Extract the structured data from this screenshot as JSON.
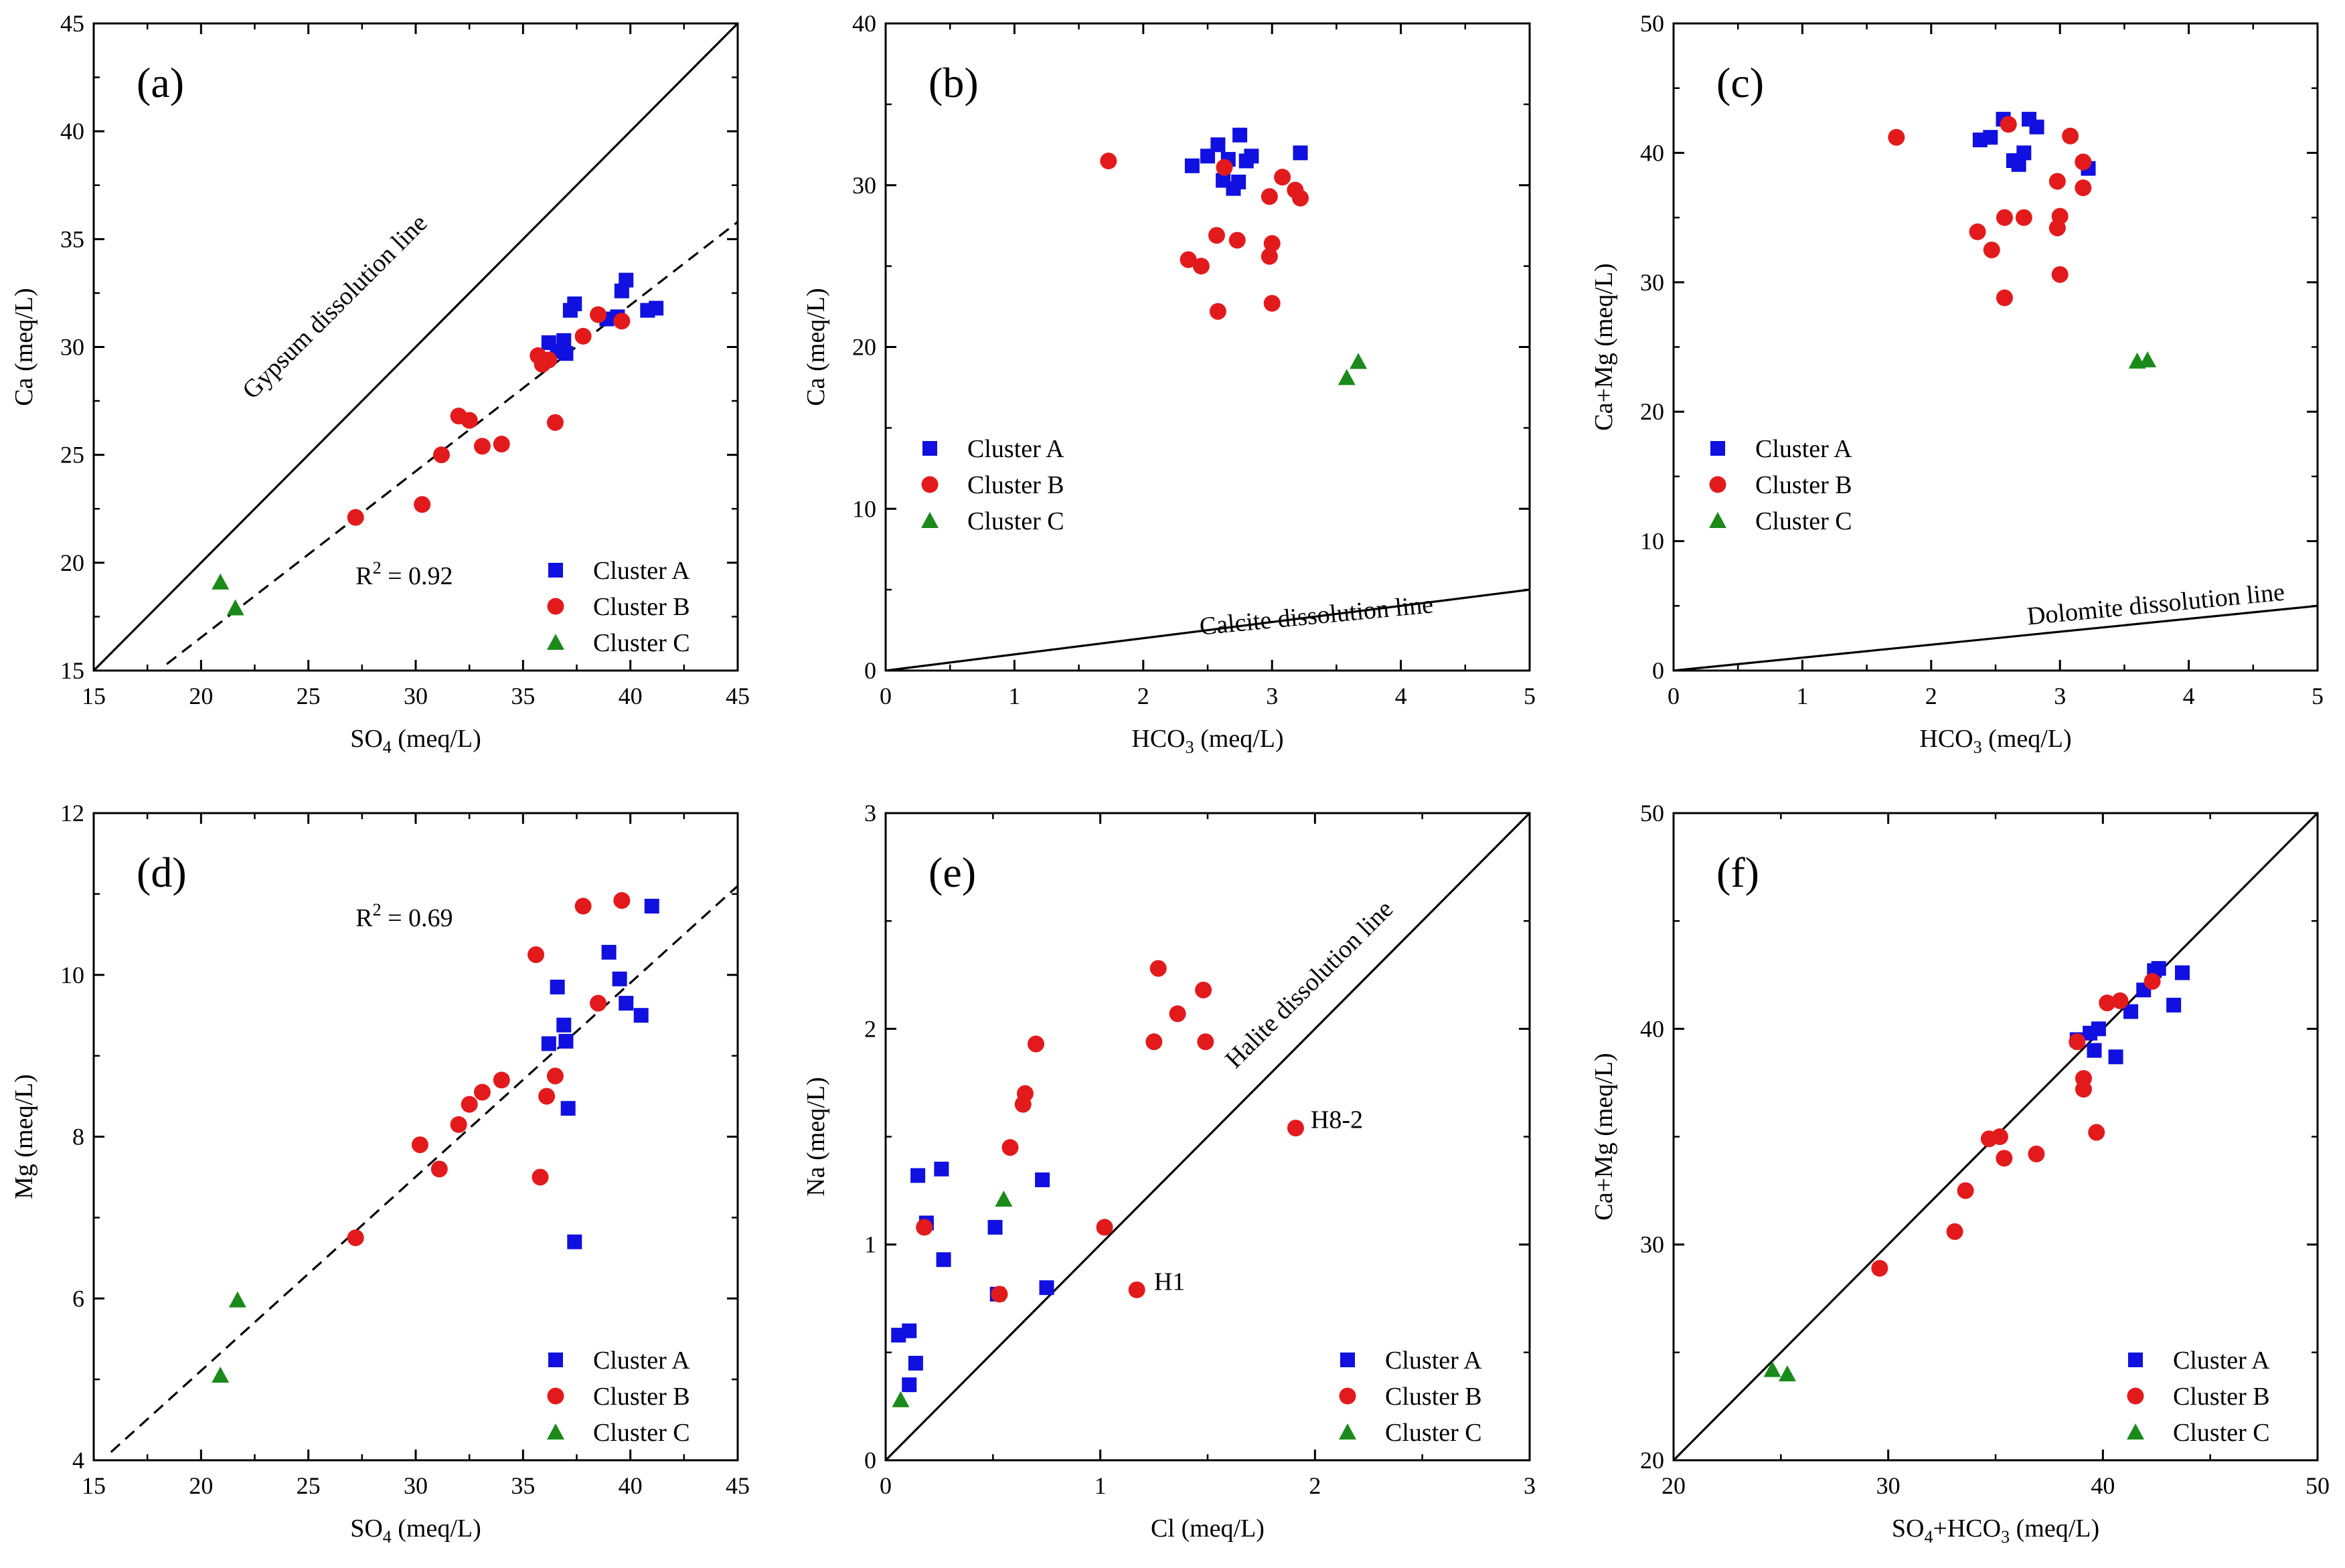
{
  "figure": {
    "description_markers": {
      "A": "square",
      "B": "circle",
      "C": "triangle"
    }
  },
  "colors": {
    "cluster_a": "#1010e0",
    "cluster_b": "#e31a1c",
    "cluster_c": "#1a8a1a",
    "axis": "#000000"
  },
  "chart_data": [
    {
      "panel": "(a)",
      "type": "scatter",
      "xlabel": "SO",
      "xlabel_sub": "4",
      "xlabel_tail": " (meq/L)",
      "ylabel": "Ca (meq/L)",
      "xlim": [
        15,
        45
      ],
      "ylim": [
        15,
        45
      ],
      "xticks": [
        15,
        20,
        25,
        30,
        35,
        40,
        45
      ],
      "yticks": [
        15,
        20,
        25,
        30,
        35,
        40,
        45
      ],
      "legend_position": "bottom-right",
      "series": [
        {
          "name": "Cluster A",
          "marker": "square",
          "points": [
            [
              36.2,
              30.2
            ],
            [
              36.6,
              29.8
            ],
            [
              36.9,
              30.3
            ],
            [
              37.0,
              29.7
            ],
            [
              37.2,
              31.7
            ],
            [
              37.4,
              32.0
            ],
            [
              38.9,
              31.3
            ],
            [
              39.4,
              31.4
            ],
            [
              39.6,
              32.6
            ],
            [
              39.8,
              33.1
            ],
            [
              40.8,
              31.7
            ],
            [
              41.2,
              31.8
            ]
          ]
        },
        {
          "name": "Cluster B",
          "marker": "circle",
          "points": [
            [
              27.2,
              22.1
            ],
            [
              30.3,
              22.7
            ],
            [
              31.2,
              25.0
            ],
            [
              32.0,
              26.8
            ],
            [
              32.5,
              26.6
            ],
            [
              33.1,
              25.4
            ],
            [
              34.0,
              25.5
            ],
            [
              35.7,
              29.6
            ],
            [
              35.9,
              29.2
            ],
            [
              36.2,
              29.4
            ],
            [
              36.5,
              26.5
            ],
            [
              37.8,
              30.5
            ],
            [
              38.5,
              31.5
            ],
            [
              39.6,
              31.2
            ]
          ]
        },
        {
          "name": "Cluster C",
          "marker": "triangle",
          "points": [
            [
              20.9,
              19.1
            ],
            [
              21.6,
              17.9
            ]
          ]
        }
      ],
      "lines": [
        {
          "style": "solid",
          "points": [
            [
              15,
              15
            ],
            [
              45,
              45
            ]
          ]
        },
        {
          "style": "dashed",
          "points": [
            [
              18.4,
              15.3
            ],
            [
              45,
              35.8
            ]
          ]
        }
      ],
      "annotations": [
        {
          "text": "Gypsum dissolution line",
          "x": 26.5,
          "y": 31.6,
          "rotate": -45
        }
      ],
      "r2": {
        "text": "R",
        "sup": "2",
        "tail": " = 0.92",
        "x": 27.2,
        "y": 19.0
      }
    },
    {
      "panel": "(b)",
      "type": "scatter",
      "xlabel": "HCO",
      "xlabel_sub": "3",
      "xlabel_tail": " (meq/L)",
      "ylabel": "Ca (meq/L)",
      "xlim": [
        0,
        5
      ],
      "ylim": [
        0,
        40
      ],
      "xticks": [
        0,
        1,
        2,
        3,
        4,
        5
      ],
      "yticks": [
        0,
        10,
        20,
        30,
        40
      ],
      "legend_position": "middle-left",
      "series": [
        {
          "name": "Cluster A",
          "marker": "square",
          "points": [
            [
              2.38,
              31.2
            ],
            [
              2.5,
              31.8
            ],
            [
              2.58,
              32.5
            ],
            [
              2.62,
              30.3
            ],
            [
              2.66,
              31.6
            ],
            [
              2.7,
              29.8
            ],
            [
              2.74,
              30.2
            ],
            [
              2.75,
              33.1
            ],
            [
              2.8,
              31.5
            ],
            [
              2.84,
              31.8
            ],
            [
              3.22,
              32.0
            ]
          ]
        },
        {
          "name": "Cluster B",
          "marker": "circle",
          "points": [
            [
              1.73,
              31.5
            ],
            [
              2.35,
              25.4
            ],
            [
              2.45,
              25.0
            ],
            [
              2.57,
              26.9
            ],
            [
              2.58,
              22.2
            ],
            [
              2.63,
              31.1
            ],
            [
              2.73,
              26.6
            ],
            [
              2.98,
              29.3
            ],
            [
              2.98,
              25.6
            ],
            [
              3.0,
              26.4
            ],
            [
              3.0,
              22.7
            ],
            [
              3.08,
              30.5
            ],
            [
              3.18,
              29.7
            ],
            [
              3.22,
              29.2
            ]
          ]
        },
        {
          "name": "Cluster C",
          "marker": "triangle",
          "points": [
            [
              3.58,
              18.1
            ],
            [
              3.67,
              19.1
            ]
          ]
        }
      ],
      "lines": [
        {
          "style": "solid",
          "points": [
            [
              0,
              0
            ],
            [
              5,
              5
            ]
          ]
        }
      ],
      "annotations": [
        {
          "text": "Calcite dissolution line",
          "x": 3.35,
          "y": 2.9,
          "rotate": -5.5
        }
      ]
    },
    {
      "panel": "(c)",
      "type": "scatter",
      "xlabel": "HCO",
      "xlabel_sub": "3",
      "xlabel_tail": " (meq/L)",
      "ylabel": "Ca+Mg (meq/L)",
      "xlim": [
        0,
        5
      ],
      "ylim": [
        0,
        50
      ],
      "xticks": [
        0,
        1,
        2,
        3,
        4,
        5
      ],
      "yticks": [
        0,
        10,
        20,
        30,
        40,
        50
      ],
      "legend_position": "middle-left",
      "series": [
        {
          "name": "Cluster A",
          "marker": "square",
          "points": [
            [
              2.38,
              41.0
            ],
            [
              2.46,
              41.2
            ],
            [
              2.56,
              42.6
            ],
            [
              2.64,
              39.4
            ],
            [
              2.68,
              39.1
            ],
            [
              2.72,
              40.0
            ],
            [
              2.76,
              42.6
            ],
            [
              2.82,
              42.0
            ],
            [
              3.22,
              38.8
            ]
          ]
        },
        {
          "name": "Cluster B",
          "marker": "circle",
          "points": [
            [
              1.73,
              41.2
            ],
            [
              2.36,
              33.9
            ],
            [
              2.47,
              32.5
            ],
            [
              2.57,
              35.0
            ],
            [
              2.57,
              28.8
            ],
            [
              2.6,
              42.2
            ],
            [
              2.72,
              35.0
            ],
            [
              2.98,
              37.8
            ],
            [
              2.98,
              34.2
            ],
            [
              3.0,
              35.1
            ],
            [
              3.0,
              30.6
            ],
            [
              3.08,
              41.3
            ],
            [
              3.18,
              39.3
            ],
            [
              3.18,
              37.3
            ]
          ]
        },
        {
          "name": "Cluster C",
          "marker": "triangle",
          "points": [
            [
              3.6,
              23.9
            ],
            [
              3.68,
              24.0
            ]
          ]
        }
      ],
      "lines": [
        {
          "style": "solid",
          "points": [
            [
              0,
              0
            ],
            [
              5,
              5
            ]
          ]
        }
      ],
      "annotations": [
        {
          "text": "Dolomite dissolution line",
          "x": 3.75,
          "y": 4.5,
          "rotate": -5.5
        }
      ]
    },
    {
      "panel": "(d)",
      "type": "scatter",
      "xlabel": "SO",
      "xlabel_sub": "4",
      "xlabel_tail": " (meq/L)",
      "ylabel": "Mg (meq/L)",
      "xlim": [
        15,
        45
      ],
      "ylim": [
        4,
        12
      ],
      "xticks": [
        15,
        20,
        25,
        30,
        35,
        40,
        45
      ],
      "yticks": [
        4,
        6,
        8,
        10,
        12
      ],
      "legend_position": "bottom-right",
      "series": [
        {
          "name": "Cluster A",
          "marker": "square",
          "points": [
            [
              36.2,
              9.15
            ],
            [
              36.6,
              9.85
            ],
            [
              36.9,
              9.38
            ],
            [
              37.0,
              9.18
            ],
            [
              37.1,
              8.35
            ],
            [
              37.4,
              6.7
            ],
            [
              39.0,
              10.28
            ],
            [
              39.5,
              9.95
            ],
            [
              39.8,
              9.65
            ],
            [
              40.5,
              9.5
            ],
            [
              41.0,
              10.85
            ]
          ]
        },
        {
          "name": "Cluster B",
          "marker": "circle",
          "points": [
            [
              27.2,
              6.75
            ],
            [
              30.2,
              7.9
            ],
            [
              31.1,
              7.6
            ],
            [
              32.0,
              8.15
            ],
            [
              32.5,
              8.4
            ],
            [
              33.1,
              8.55
            ],
            [
              34.0,
              8.7
            ],
            [
              35.6,
              10.25
            ],
            [
              35.8,
              7.5
            ],
            [
              36.1,
              8.5
            ],
            [
              36.5,
              8.75
            ],
            [
              37.8,
              10.85
            ],
            [
              38.5,
              9.65
            ],
            [
              39.6,
              10.92
            ]
          ]
        },
        {
          "name": "Cluster C",
          "marker": "triangle",
          "points": [
            [
              20.9,
              5.05
            ],
            [
              21.7,
              5.98
            ]
          ]
        }
      ],
      "lines": [
        {
          "style": "dashed",
          "points": [
            [
              15.8,
              4.1
            ],
            [
              45,
              11.1
            ]
          ]
        }
      ],
      "annotations": [],
      "r2": {
        "text": "R",
        "sup": "2",
        "tail": " = 0.69",
        "x": 27.2,
        "y": 10.6
      }
    },
    {
      "panel": "(e)",
      "type": "scatter",
      "xlabel": "Cl (meq/L)",
      "xlabel_sub": "",
      "xlabel_tail": "",
      "ylabel": "Na (meq/L)",
      "xlim": [
        0,
        3
      ],
      "ylim": [
        0,
        3
      ],
      "xticks": [
        0,
        1,
        2,
        3
      ],
      "yticks": [
        0,
        1,
        2,
        3
      ],
      "legend_position": "bottom-right",
      "series": [
        {
          "name": "Cluster A",
          "marker": "square",
          "points": [
            [
              0.06,
              0.58
            ],
            [
              0.11,
              0.6
            ],
            [
              0.11,
              0.35
            ],
            [
              0.14,
              0.45
            ],
            [
              0.15,
              1.32
            ],
            [
              0.19,
              1.1
            ],
            [
              0.26,
              1.35
            ],
            [
              0.27,
              0.93
            ],
            [
              0.51,
              1.08
            ],
            [
              0.52,
              0.77
            ],
            [
              0.73,
              1.3
            ],
            [
              0.75,
              0.8
            ]
          ]
        },
        {
          "name": "Cluster B",
          "marker": "circle",
          "points": [
            [
              0.18,
              1.08
            ],
            [
              0.53,
              0.77
            ],
            [
              0.58,
              1.45
            ],
            [
              0.64,
              1.65
            ],
            [
              0.65,
              1.7
            ],
            [
              0.7,
              1.93
            ],
            [
              1.02,
              1.08
            ],
            [
              1.17,
              0.79
            ],
            [
              1.25,
              1.94
            ],
            [
              1.27,
              2.28
            ],
            [
              1.36,
              2.07
            ],
            [
              1.48,
              2.18
            ],
            [
              1.49,
              1.94
            ],
            [
              1.91,
              1.54
            ]
          ]
        },
        {
          "name": "Cluster C",
          "marker": "triangle",
          "points": [
            [
              0.07,
              0.28
            ],
            [
              0.55,
              1.21
            ]
          ]
        }
      ],
      "lines": [
        {
          "style": "solid",
          "points": [
            [
              0,
              0
            ],
            [
              3,
              3
            ]
          ]
        }
      ],
      "annotations": [
        {
          "text": "Halite dissolution line",
          "x": 2.0,
          "y": 2.18,
          "rotate": -45
        },
        {
          "text": "H8-2",
          "x": 1.98,
          "y": 1.54,
          "rotate": 0,
          "anchor": "start"
        },
        {
          "text": "H1",
          "x": 1.25,
          "y": 0.79,
          "rotate": 0,
          "anchor": "start"
        }
      ]
    },
    {
      "panel": "(f)",
      "type": "scatter",
      "xlabel": "SO",
      "xlabel_sub": "4",
      "xlabel_tail": "+HCO",
      "xlabel_sub2": "3",
      "xlabel_tail2": " (meq/L)",
      "ylabel": "Ca+Mg (meq/L)",
      "xlim": [
        20,
        50
      ],
      "ylim": [
        20,
        50
      ],
      "xticks": [
        20,
        30,
        40,
        50
      ],
      "yticks": [
        20,
        30,
        40,
        50
      ],
      "legend_position": "bottom-right",
      "series": [
        {
          "name": "Cluster A",
          "marker": "square",
          "points": [
            [
              38.8,
              39.5
            ],
            [
              39.4,
              39.8
            ],
            [
              39.6,
              39.0
            ],
            [
              39.8,
              40.0
            ],
            [
              40.6,
              38.7
            ],
            [
              41.3,
              40.8
            ],
            [
              41.9,
              41.8
            ],
            [
              42.4,
              42.7
            ],
            [
              42.6,
              42.8
            ],
            [
              43.3,
              41.1
            ],
            [
              43.7,
              42.6
            ]
          ]
        },
        {
          "name": "Cluster B",
          "marker": "circle",
          "points": [
            [
              29.6,
              28.9
            ],
            [
              33.1,
              30.6
            ],
            [
              33.6,
              32.5
            ],
            [
              34.7,
              34.9
            ],
            [
              35.2,
              35.0
            ],
            [
              35.4,
              34.0
            ],
            [
              36.9,
              34.2
            ],
            [
              38.8,
              39.4
            ],
            [
              39.1,
              37.7
            ],
            [
              39.1,
              37.2
            ],
            [
              39.7,
              35.2
            ],
            [
              40.2,
              41.2
            ],
            [
              40.8,
              41.3
            ],
            [
              42.3,
              42.2
            ]
          ]
        },
        {
          "name": "Cluster C",
          "marker": "triangle",
          "points": [
            [
              24.6,
              24.2
            ],
            [
              25.3,
              24.0
            ]
          ]
        }
      ],
      "lines": [
        {
          "style": "solid",
          "points": [
            [
              20,
              20
            ],
            [
              50,
              50
            ]
          ]
        }
      ],
      "annotations": []
    }
  ]
}
